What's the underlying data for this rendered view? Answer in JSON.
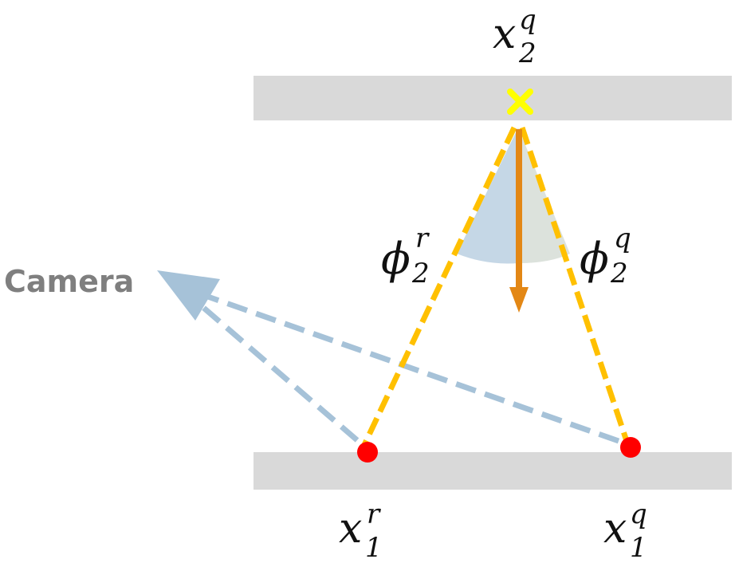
{
  "labels": {
    "camera": "Camera",
    "x2q": {
      "base": "x",
      "sub": "2",
      "sup": "q"
    },
    "x1r": {
      "base": "x",
      "sub": "1",
      "sup": "r"
    },
    "x1q": {
      "base": "x",
      "sub": "1",
      "sup": "q"
    },
    "phi2r": {
      "base": "ϕ",
      "sub": "2",
      "sup": "r"
    },
    "phi2q": {
      "base": "ϕ",
      "sub": "2",
      "sup": "q"
    }
  },
  "colors": {
    "plane": "#d9d9d9",
    "ray_yellow": "#ffc000",
    "ray_blue": "#a6c2d8",
    "point_red": "#ff0000",
    "cross_yellow": "#ffff00",
    "normal_orange": "#e38715",
    "wedge_blue": "#c5d7e6",
    "wedge_gray": "#dce2dc",
    "camera_text": "#7f7f7f"
  },
  "icons": {
    "query_point": "cross-icon",
    "reference_points": "dot-icon",
    "camera": "arrow-icon"
  }
}
